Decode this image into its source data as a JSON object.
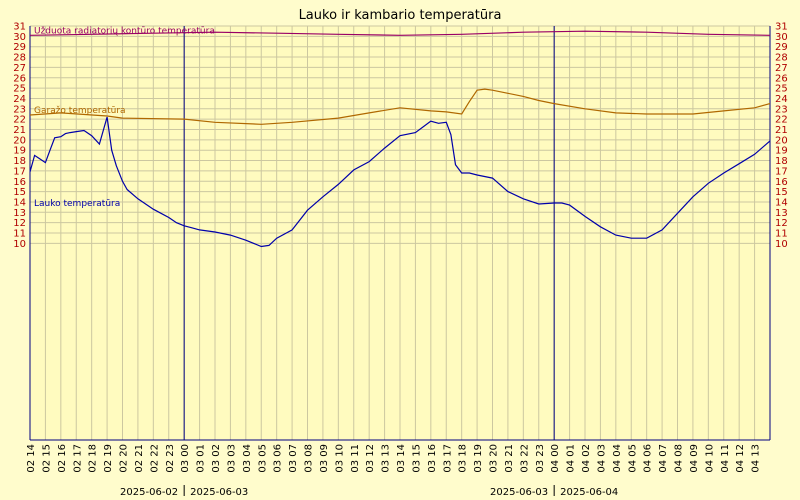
{
  "chart_data": {
    "type": "line",
    "title": "Lauko ir kambario temperatūra",
    "ylim": [
      -9,
      31
    ],
    "yticks_left": [
      10,
      11,
      12,
      13,
      14,
      15,
      16,
      17,
      18,
      19,
      20,
      21,
      22,
      23,
      24,
      25,
      26,
      27,
      28,
      29,
      30,
      31
    ],
    "yticks_right": [
      "10",
      "11",
      "12",
      "13",
      "14",
      "15",
      "16",
      "17",
      "18",
      "19",
      "20",
      "21",
      "22",
      "23",
      "24",
      "25",
      "26",
      "27",
      "28",
      "29",
      "30",
      "31"
    ],
    "grid": true,
    "x_hours": [
      "02 14",
      "02 15",
      "02 16",
      "02 17",
      "02 18",
      "02 19",
      "02 20",
      "02 21",
      "02 22",
      "02 23",
      "03 00",
      "03 01",
      "03 02",
      "03 03",
      "03 04",
      "03 05",
      "03 06",
      "03 07",
      "03 08",
      "03 09",
      "03 10",
      "03 11",
      "03 12",
      "03 13",
      "03 14",
      "03 15",
      "03 16",
      "03 17",
      "03 18",
      "03 19",
      "03 20",
      "03 21",
      "03 22",
      "03 23",
      "04 00",
      "04 01",
      "04 02",
      "04 03",
      "04 04",
      "04 05",
      "04 06",
      "04 07",
      "04 08",
      "04 09",
      "04 10",
      "04 11",
      "04 12",
      "04 13"
    ],
    "day_markers": [
      {
        "hour_index": 10,
        "left": "2025-06-02",
        "right": "2025-06-03"
      },
      {
        "hour_index": 34,
        "left": "2025-06-03",
        "right": "2025-06-04"
      }
    ],
    "series": [
      {
        "name": "Lauko temperatūra",
        "color": "#0000aa",
        "x": [
          0,
          0.3,
          0.6,
          1,
          1.3,
          1.6,
          2,
          2.3,
          2.6,
          3,
          3.5,
          4,
          4.5,
          5,
          5.3,
          5.6,
          6,
          6.3,
          7,
          7.5,
          8,
          8.5,
          9,
          9.5,
          10,
          10.5,
          11,
          12,
          13,
          14,
          15,
          15.5,
          16,
          17,
          18,
          19,
          20,
          21,
          22,
          23,
          24,
          25,
          26,
          26.5,
          27,
          27.3,
          27.6,
          28,
          28.5,
          29,
          30,
          31,
          32,
          33,
          34,
          34.5,
          35,
          36,
          37,
          38,
          39,
          40,
          41,
          42,
          43,
          44,
          45,
          46,
          47,
          48
        ],
        "y": [
          16.9,
          18.5,
          18.2,
          17.8,
          19.0,
          20.2,
          20.3,
          20.6,
          20.7,
          20.8,
          20.9,
          20.4,
          19.6,
          22.2,
          19.0,
          17.5,
          16.0,
          15.2,
          14.3,
          13.8,
          13.3,
          12.9,
          12.5,
          12.0,
          11.7,
          11.5,
          11.3,
          11.1,
          10.8,
          10.3,
          9.7,
          9.8,
          10.5,
          11.3,
          13.2,
          14.5,
          15.7,
          17.1,
          17.9,
          19.2,
          20.4,
          20.7,
          21.8,
          21.6,
          21.7,
          20.5,
          17.6,
          16.8,
          16.8,
          16.6,
          16.3,
          15.0,
          14.3,
          13.8,
          13.9,
          13.9,
          13.7,
          12.6,
          11.6,
          10.8,
          10.5,
          10.5,
          11.3,
          12.9,
          14.5,
          15.8,
          16.8,
          17.7,
          18.6,
          19.9
        ]
      },
      {
        "name": "Garažo temperatūra",
        "color": "#b06800",
        "x": [
          0,
          2,
          5,
          6,
          10,
          12,
          15,
          17,
          20,
          22,
          24,
          26,
          27,
          28,
          28.5,
          29,
          29.5,
          30,
          31,
          32,
          33,
          34,
          36,
          38,
          40,
          43,
          45,
          47,
          48
        ],
        "y": [
          22.4,
          22.6,
          22.3,
          22.1,
          22.0,
          21.7,
          21.5,
          21.7,
          22.1,
          22.6,
          23.1,
          22.8,
          22.7,
          22.5,
          23.7,
          24.8,
          24.9,
          24.8,
          24.5,
          24.2,
          23.8,
          23.5,
          23.0,
          22.6,
          22.5,
          22.5,
          22.8,
          23.1,
          23.5
        ]
      },
      {
        "name": "Užduota radiatorių kontūro temperatūra",
        "color": "#990066",
        "x": [
          0,
          4,
          8,
          12,
          16,
          20,
          24,
          28,
          32,
          36,
          40,
          44,
          48
        ],
        "y": [
          30.1,
          30.2,
          30.3,
          30.4,
          30.3,
          30.2,
          30.1,
          30.2,
          30.4,
          30.5,
          30.4,
          30.2,
          30.1
        ]
      }
    ]
  }
}
